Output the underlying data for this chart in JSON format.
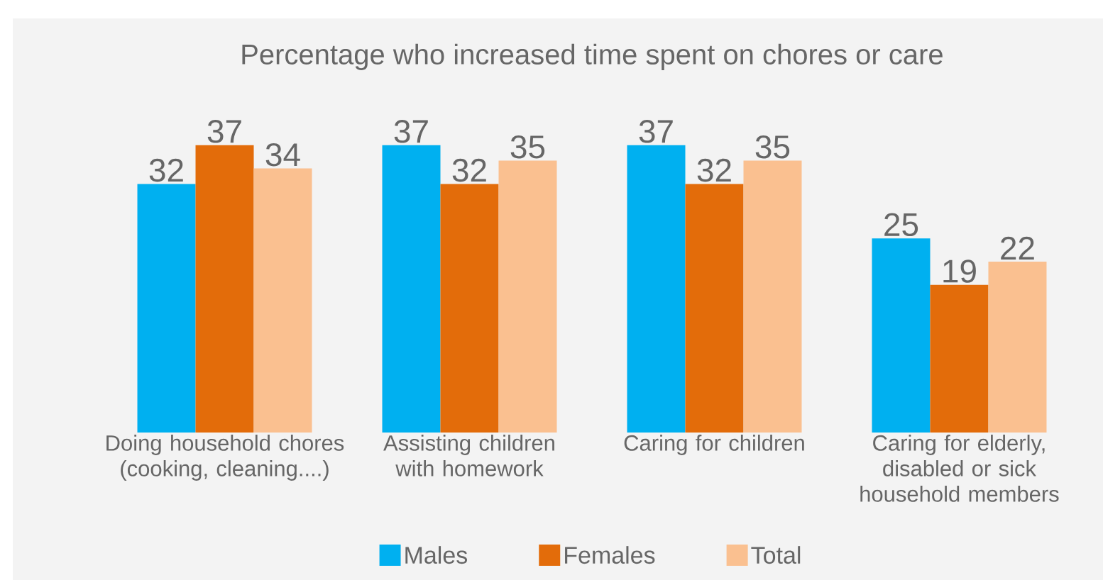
{
  "chart_data": {
    "type": "bar",
    "title": "Percentage who increased time spent on chores or care",
    "categories": [
      "Doing household chores (cooking, cleaning....)",
      "Assisting children with homework",
      "Caring for children",
      "Caring for elderly, disabled or sick household members"
    ],
    "series": [
      {
        "name": "Males",
        "color": "#00b0f0",
        "values": [
          32,
          37,
          37,
          25
        ]
      },
      {
        "name": "Females",
        "color": "#e36c0a",
        "values": [
          37,
          32,
          32,
          19
        ]
      },
      {
        "name": "Total",
        "color": "#fac090",
        "values": [
          34,
          35,
          35,
          22
        ]
      }
    ],
    "data_labels": true,
    "legend": "bottom"
  }
}
